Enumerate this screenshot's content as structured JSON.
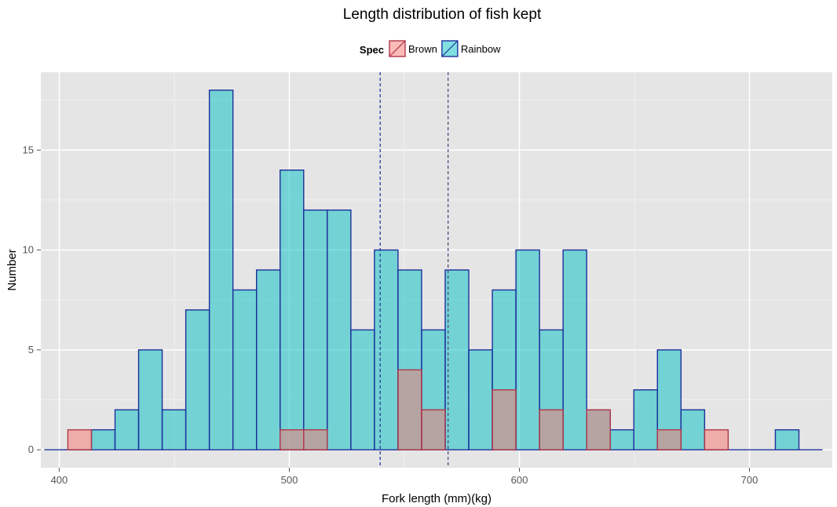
{
  "chart_data": {
    "type": "bar",
    "subtype": "overlaid-histogram",
    "title": "Length distribution of fish kept",
    "xlabel": "Fork length (mm)(kg)",
    "ylabel": "Number",
    "xlim": [
      392,
      736
    ],
    "ylim": [
      -0.9,
      18.9
    ],
    "xticks": [
      400,
      500,
      600,
      700
    ],
    "yticks": [
      0,
      5,
      10,
      15
    ],
    "xtick_labels": [
      "400",
      "500",
      "600",
      "700"
    ],
    "ytick_labels": [
      "0",
      "5",
      "10",
      "15"
    ],
    "grid": true,
    "legend": {
      "title": "Spec",
      "position": "top"
    },
    "bin_width": 10.25,
    "bin_starts": [
      393.5,
      403.75,
      414,
      424.25,
      434.5,
      444.75,
      455,
      465.25,
      475.5,
      485.75,
      496,
      506.25,
      516.5,
      526.75,
      537,
      547.25,
      557.5,
      567.75,
      578,
      588.25,
      598.5,
      608.75,
      619,
      629.25,
      639.5,
      649.75,
      660,
      670.25,
      680.5,
      690.75,
      701,
      711.25,
      721.5
    ],
    "series": [
      {
        "name": "Brown",
        "color": "#F8766D",
        "values": [
          0,
          1,
          0,
          0,
          0,
          0,
          0,
          0,
          0,
          0,
          1,
          1,
          0,
          0,
          0,
          4,
          2,
          0,
          0,
          3,
          0,
          2,
          0,
          2,
          0,
          0,
          1,
          0,
          1,
          0,
          0,
          0,
          0
        ]
      },
      {
        "name": "Rainbow",
        "color": "#00BFC4",
        "values": [
          0,
          0,
          1,
          2,
          5,
          2,
          7,
          18,
          8,
          9,
          14,
          12,
          12,
          6,
          10,
          9,
          6,
          9,
          5,
          8,
          10,
          6,
          10,
          2,
          1,
          3,
          5,
          2,
          0,
          0,
          0,
          1,
          0
        ]
      }
    ],
    "vlines": [
      {
        "x": 539.5,
        "color": "#2B3A9C"
      },
      {
        "x": 569,
        "color": "#5A4A7A"
      }
    ]
  }
}
